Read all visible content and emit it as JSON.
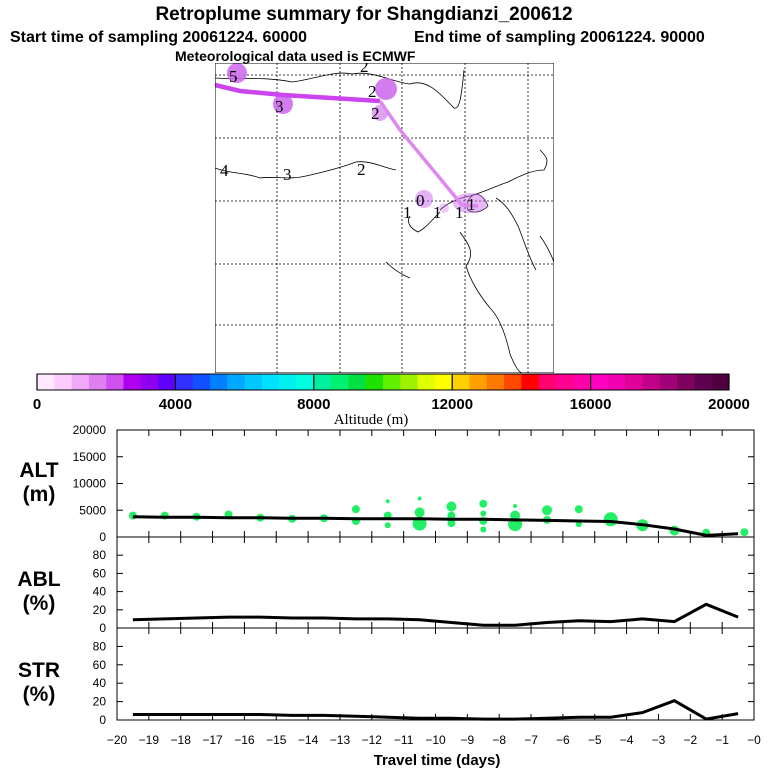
{
  "header": {
    "title": "Retroplume summary for Shangdianzi_200612",
    "start_time": "Start time of sampling 20061224. 60000",
    "end_time": "End time of sampling 20061224. 90000",
    "met_data": "Meteorological data used is ECMWF"
  },
  "colorbar": {
    "label": "Altitude (m)",
    "min": 0,
    "max": 20000,
    "tick_labels": [
      "0",
      "4000",
      "8000",
      "12000",
      "16000",
      "20000"
    ],
    "colors": [
      "#ffe8ff",
      "#fcccff",
      "#f0a8f8",
      "#e080f0",
      "#d050f0",
      "#b000f0",
      "#9000f0",
      "#6000ff",
      "#3030ff",
      "#1050ff",
      "#0080ff",
      "#00a8ff",
      "#00c8ff",
      "#00e0ff",
      "#00f0f0",
      "#00ffe0",
      "#00f0a0",
      "#00f070",
      "#00e040",
      "#20e000",
      "#60f000",
      "#a0f000",
      "#e0ff00",
      "#ffff00",
      "#ffd000",
      "#ffa000",
      "#ff7800",
      "#ff4800",
      "#ff0000",
      "#ff0070",
      "#ff0090",
      "#ff00a8",
      "#ff00c0",
      "#f000b0",
      "#e0009a",
      "#c00088",
      "#a00078",
      "#800060",
      "#600050",
      "#500040"
    ]
  },
  "map": {
    "trajectory_color": "#cc44ee",
    "trajectory_color_recent": "#dd88ee",
    "labels": [
      "5",
      "2",
      "3",
      "2",
      "2",
      "4",
      "3",
      "2",
      "1",
      "0",
      "1",
      "1",
      "1"
    ],
    "blobs_color": "#cc66ee"
  },
  "chart_data": [
    {
      "type": "line",
      "panel": "ALT",
      "ylabel_line1": "ALT",
      "ylabel_line2": "(m)",
      "ylim": [
        0,
        20000
      ],
      "y_ticks": [
        0,
        5000,
        10000,
        15000,
        20000
      ],
      "y_tick_labels": [
        "0",
        "5000",
        "10000",
        "15000",
        "20000"
      ],
      "x": [
        -19.5,
        -18.5,
        -17.5,
        -16.5,
        -15.5,
        -14.5,
        -13.5,
        -12.5,
        -11.5,
        -10.5,
        -9.5,
        -8.5,
        -7.5,
        -6.5,
        -5.5,
        -4.5,
        -3.5,
        -2.5,
        -1.5,
        -0.5
      ],
      "median": [
        3800,
        3700,
        3700,
        3600,
        3600,
        3500,
        3500,
        3400,
        3400,
        3400,
        3300,
        3300,
        3200,
        3100,
        3000,
        2900,
        2300,
        1500,
        300,
        600
      ],
      "cluster_color": "#22ee66",
      "clusters": [
        {
          "x": -19.5,
          "y": 4000
        },
        {
          "x": -18.5,
          "y": 4000
        },
        {
          "x": -17.5,
          "y": 3800
        },
        {
          "x": -16.5,
          "y": 4200
        },
        {
          "x": -15.5,
          "y": 3600
        },
        {
          "x": -14.5,
          "y": 3400
        },
        {
          "x": -13.5,
          "y": 3500
        },
        {
          "x": -12.5,
          "y": 5200
        },
        {
          "x": -12.5,
          "y": 3000
        },
        {
          "x": -11.5,
          "y": 6700
        },
        {
          "x": -11.5,
          "y": 4000
        },
        {
          "x": -11.5,
          "y": 2200
        },
        {
          "x": -10.5,
          "y": 7200
        },
        {
          "x": -10.5,
          "y": 4600
        },
        {
          "x": -10.5,
          "y": 2500
        },
        {
          "x": -9.5,
          "y": 5700
        },
        {
          "x": -9.5,
          "y": 4000
        },
        {
          "x": -9.5,
          "y": 2600
        },
        {
          "x": -8.5,
          "y": 6200
        },
        {
          "x": -8.5,
          "y": 4400
        },
        {
          "x": -8.5,
          "y": 3000
        },
        {
          "x": -8.5,
          "y": 1400
        },
        {
          "x": -7.5,
          "y": 5800
        },
        {
          "x": -7.5,
          "y": 4000
        },
        {
          "x": -7.5,
          "y": 2400
        },
        {
          "x": -6.5,
          "y": 5000
        },
        {
          "x": -6.5,
          "y": 3200
        },
        {
          "x": -5.5,
          "y": 5200
        },
        {
          "x": -5.5,
          "y": 2400
        },
        {
          "x": -4.5,
          "y": 3300
        },
        {
          "x": -3.5,
          "y": 2200
        },
        {
          "x": -2.5,
          "y": 1200
        },
        {
          "x": -1.5,
          "y": 800
        },
        {
          "x": -0.3,
          "y": 900
        }
      ],
      "cluster_sizes": [
        4,
        4,
        4,
        4,
        4,
        4,
        4,
        4,
        4,
        2,
        4,
        3,
        2,
        5,
        7,
        5,
        4,
        4,
        4,
        3,
        4,
        3,
        2,
        5,
        7,
        5,
        4,
        4,
        3,
        7,
        6,
        5,
        4,
        4
      ]
    },
    {
      "type": "line",
      "panel": "ABL",
      "ylabel_line1": "ABL",
      "ylabel_line2": "(%)",
      "ylim": [
        0,
        100
      ],
      "y_ticks": [
        0,
        20,
        40,
        60,
        80
      ],
      "y_tick_labels": [
        "0",
        "20",
        "40",
        "60",
        "80"
      ],
      "x": [
        -19.5,
        -18.5,
        -17.5,
        -16.5,
        -15.5,
        -14.5,
        -13.5,
        -12.5,
        -11.5,
        -10.5,
        -9.5,
        -8.5,
        -7.5,
        -6.5,
        -5.5,
        -4.5,
        -3.5,
        -2.5,
        -1.5,
        -0.5
      ],
      "values": [
        9,
        10,
        11,
        12,
        12,
        11,
        11,
        10,
        10,
        9,
        6,
        3,
        3,
        6,
        8,
        7,
        10,
        7,
        26,
        12
      ]
    },
    {
      "type": "line",
      "panel": "STR",
      "ylabel_line1": "STR",
      "ylabel_line2": "(%)",
      "ylim": [
        0,
        100
      ],
      "y_ticks": [
        0,
        20,
        40,
        60,
        80
      ],
      "y_tick_labels": [
        "0",
        "20",
        "40",
        "60",
        "80"
      ],
      "x": [
        -19.5,
        -18.5,
        -17.5,
        -16.5,
        -15.5,
        -14.5,
        -13.5,
        -12.5,
        -11.5,
        -10.5,
        -9.5,
        -8.5,
        -7.5,
        -6.5,
        -5.5,
        -4.5,
        -3.5,
        -2.5,
        -1.5,
        -0.5
      ],
      "values": [
        6,
        6,
        6,
        6,
        6,
        5,
        5,
        4,
        3,
        2,
        2,
        1,
        1,
        2,
        3,
        3,
        8,
        21,
        1,
        7
      ]
    }
  ],
  "x_axis": {
    "xlim": [
      -20,
      0
    ],
    "ticks": [
      -20,
      -19,
      -18,
      -17,
      -16,
      -15,
      -14,
      -13,
      -12,
      -11,
      -10,
      -9,
      -8,
      -7,
      -6,
      -5,
      -4,
      -3,
      -2,
      -1,
      0
    ],
    "tick_labels": [
      "−20",
      "−19",
      "−18",
      "−17",
      "−16",
      "−15",
      "−14",
      "−13",
      "−12",
      "−11",
      "−10",
      "−9",
      "−8",
      "−7",
      "−6",
      "−5",
      "−4",
      "−3",
      "−2",
      "−1",
      "−0"
    ],
    "label": "Travel time (days)"
  }
}
